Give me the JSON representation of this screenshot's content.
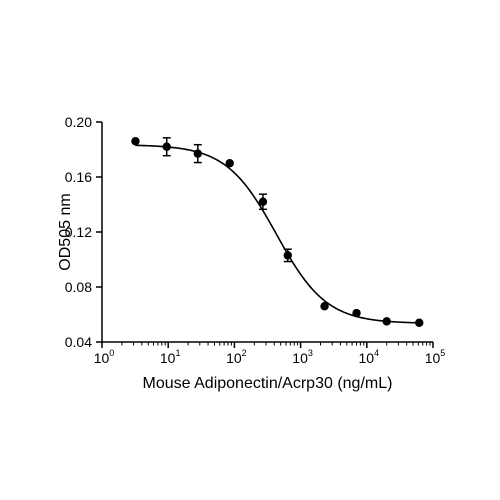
{
  "chart_data": {
    "type": "scatter",
    "title": "",
    "xlabel": "Mouse Adiponectin/Acrp30 (ng/mL)",
    "ylabel": "OD505 nm",
    "x_scale": "log10",
    "xlim": [
      1,
      100000
    ],
    "ylim": [
      0.04,
      0.2
    ],
    "grid": false,
    "legend": "none",
    "x_ticks": [
      {
        "base": "10",
        "exp": "0"
      },
      {
        "base": "10",
        "exp": "1"
      },
      {
        "base": "10",
        "exp": "2"
      },
      {
        "base": "10",
        "exp": "3"
      },
      {
        "base": "10",
        "exp": "4"
      },
      {
        "base": "10",
        "exp": "5"
      }
    ],
    "y_ticks": [
      "0.04",
      "0.08",
      "0.12",
      "0.16",
      "0.20"
    ],
    "series": [
      {
        "points": [
          {
            "x": 3.2,
            "y": 0.186,
            "err": 0.0
          },
          {
            "x": 9.5,
            "y": 0.182,
            "err": 0.0065
          },
          {
            "x": 28,
            "y": 0.177,
            "err": 0.0065
          },
          {
            "x": 85,
            "y": 0.17,
            "err": 0.0
          },
          {
            "x": 270,
            "y": 0.142,
            "err": 0.0055
          },
          {
            "x": 640,
            "y": 0.103,
            "err": 0.0045
          },
          {
            "x": 2300,
            "y": 0.066,
            "err": 0.0
          },
          {
            "x": 7000,
            "y": 0.061,
            "err": 0.0
          },
          {
            "x": 20000,
            "y": 0.055,
            "err": 0.0
          },
          {
            "x": 62000,
            "y": 0.054,
            "err": 0.0
          }
        ],
        "fit": {
          "type": "4PL",
          "top": 0.1835,
          "bottom": 0.0535,
          "ec50": 430,
          "hill": 1.15
        }
      }
    ],
    "colors": {
      "axis": "#000000",
      "marker": "#000000",
      "line": "#000000"
    }
  }
}
